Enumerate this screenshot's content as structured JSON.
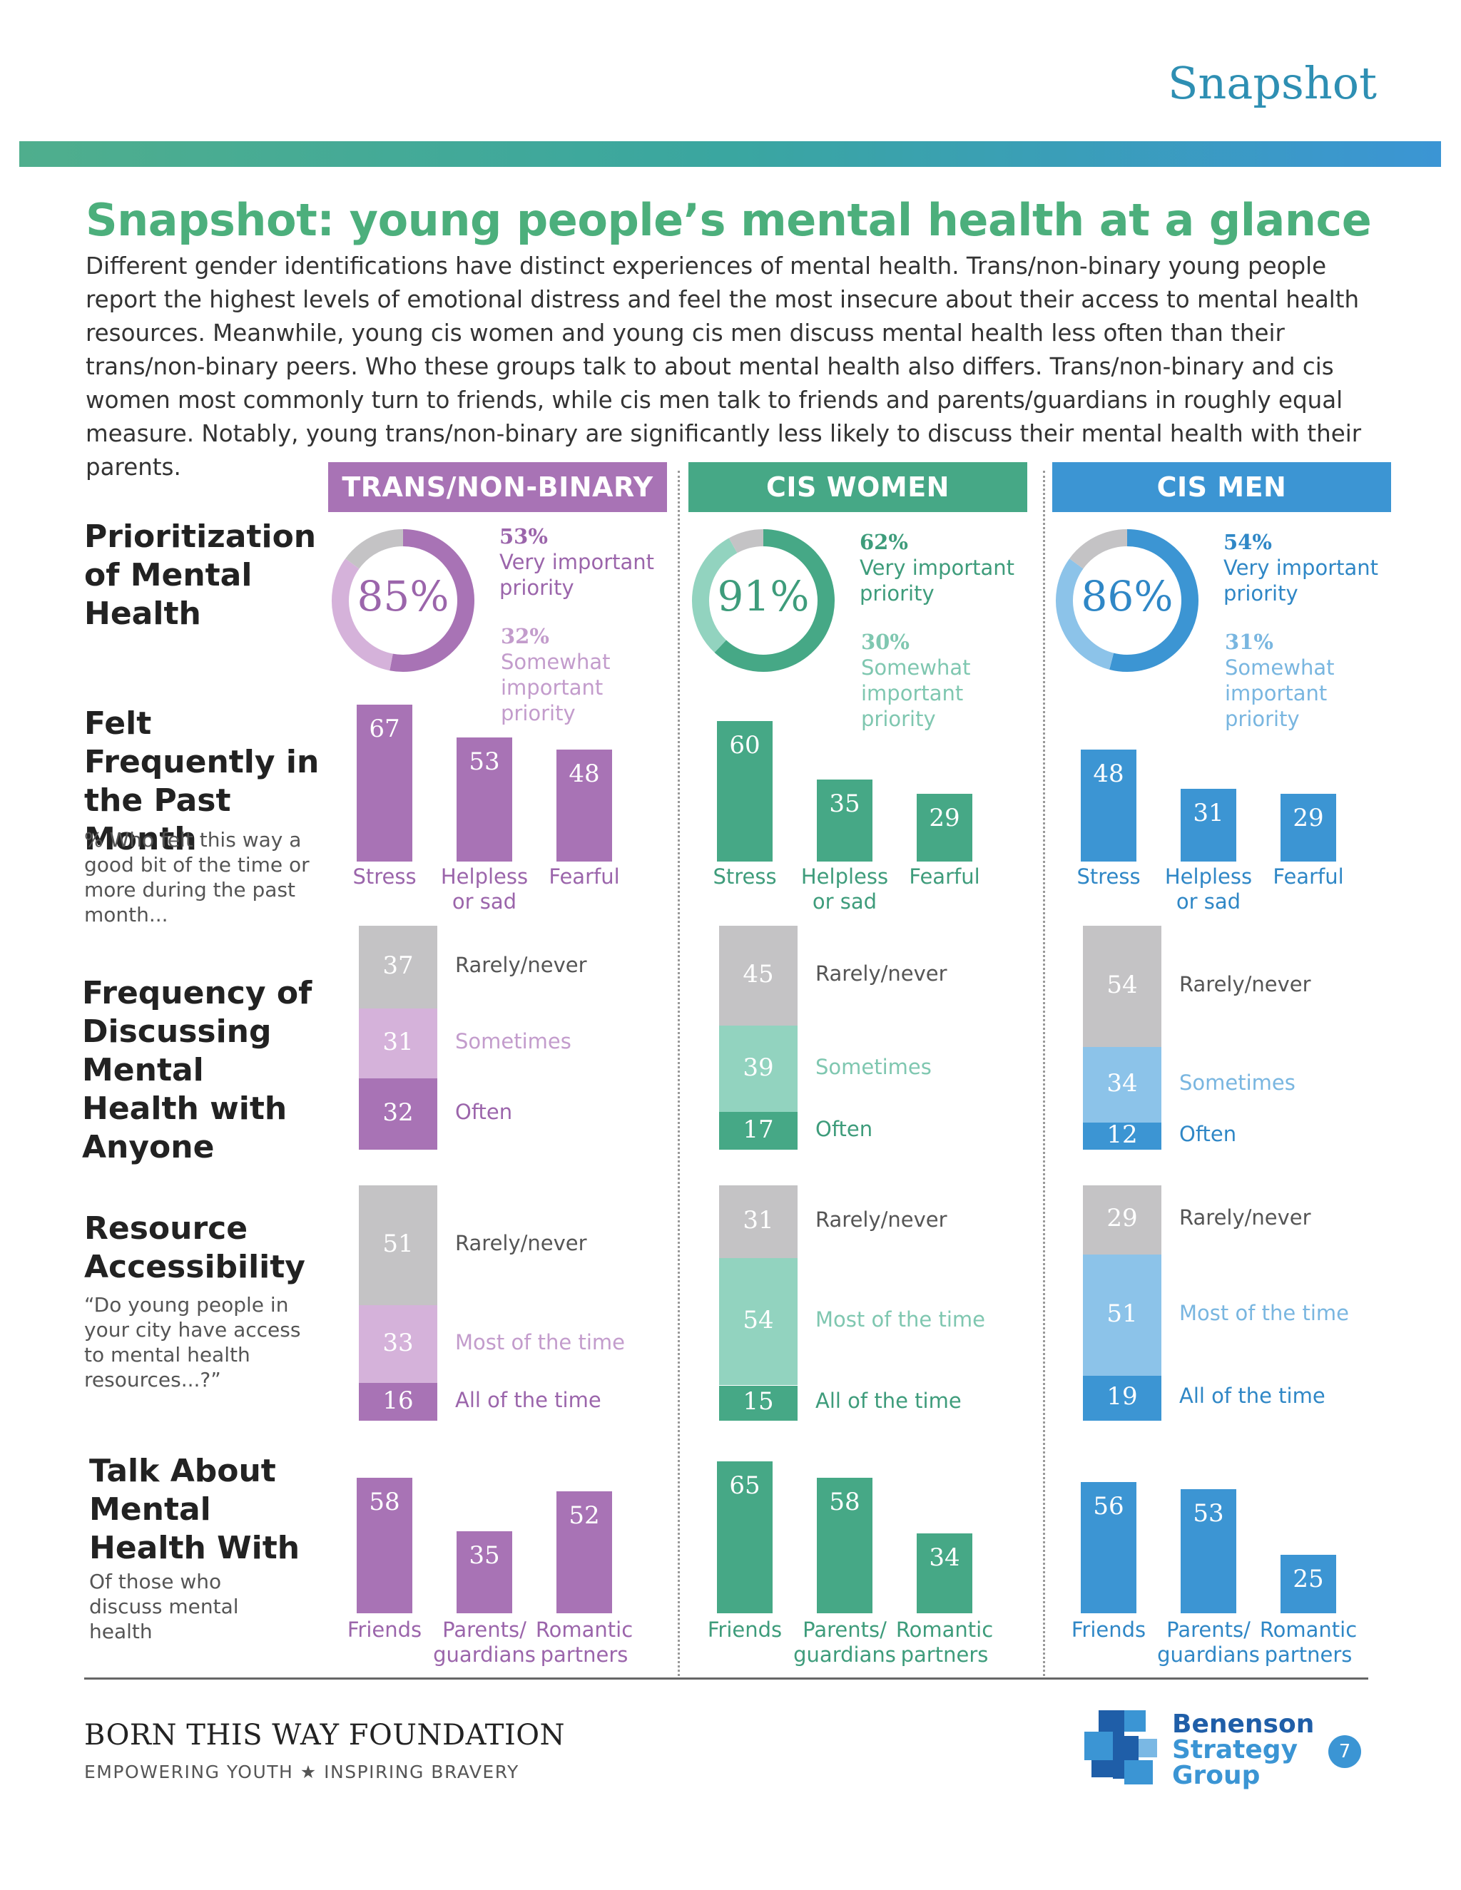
{
  "header": {
    "section_label": "Snapshot"
  },
  "title": "Snapshot: young people’s mental health at a glance",
  "intro": "Different gender identifications have distinct experiences of mental health. Trans/non-binary young people report the highest levels of emotional distress and feel the most insecure about their access to mental health resources. Meanwhile, young cis women and young cis men discuss mental health less often than their trans/non-binary peers. Who these groups talk to about mental health also differs. Trans/non-binary and cis women most commonly turn to friends, while cis men talk to friends and parents/guardians in roughly equal measure. Notably, young trans/non-binary are significantly less likely to discuss their mental health with their parents.",
  "rows": {
    "prioritization": {
      "title": "Prioritization of Mental Health"
    },
    "felt": {
      "title": "Felt Frequently in the Past Month",
      "sub": "% Who felt this way a good bit of the time or more during the past month..."
    },
    "frequency": {
      "title": "Frequency of Discussing Mental Health with Anyone"
    },
    "resource": {
      "title": "Resource Accessibility",
      "sub": "“Do young people in your city have access to mental health resources...?”"
    },
    "talk": {
      "title": "Talk About Mental Health With",
      "sub": "Of those who discuss mental health"
    }
  },
  "chart_data": {
    "type": "bar",
    "groups": [
      {
        "name": "TRANS/NON-BINARY",
        "colors": {
          "main": "#a873b5",
          "light": "#d5b2da",
          "text": "#9b65ab",
          "lighttext": "#c39ccc"
        },
        "priority": {
          "total": 85,
          "total_label": "85%",
          "very": 53,
          "very_label": "53%",
          "very_text": "Very important priority",
          "somewhat": 32,
          "somewhat_label": "32%",
          "somewhat_text": "Somewhat important priority"
        },
        "felt": {
          "categories": [
            "Stress",
            "Helpless or sad",
            "Fearful"
          ],
          "values": [
            67,
            53,
            48
          ]
        },
        "frequency": {
          "labels": [
            "Rarely/never",
            "Sometimes",
            "Often"
          ],
          "values": [
            37,
            31,
            32
          ]
        },
        "resource": {
          "labels": [
            "Rarely/never",
            "Most of the time",
            "All of the time"
          ],
          "values": [
            51,
            33,
            16
          ]
        },
        "talk": {
          "categories": [
            "Friends",
            "Parents/ guardians",
            "Romantic partners"
          ],
          "values": [
            58,
            35,
            52
          ]
        }
      },
      {
        "name": "CIS WOMEN",
        "colors": {
          "main": "#46a886",
          "light": "#92d3bf",
          "text": "#3e9c7b",
          "lighttext": "#7fc7b0"
        },
        "priority": {
          "total": 91,
          "total_label": "91%",
          "very": 62,
          "very_label": "62%",
          "very_text": "Very important priority",
          "somewhat": 30,
          "somewhat_label": "30%",
          "somewhat_text": "Somewhat important priority"
        },
        "felt": {
          "categories": [
            "Stress",
            "Helpless or sad",
            "Fearful"
          ],
          "values": [
            60,
            35,
            29
          ]
        },
        "frequency": {
          "labels": [
            "Rarely/never",
            "Sometimes",
            "Often"
          ],
          "values": [
            45,
            39,
            17
          ]
        },
        "resource": {
          "labels": [
            "Rarely/never",
            "Most of the time",
            "All of the time"
          ],
          "values": [
            31,
            54,
            15
          ]
        },
        "talk": {
          "categories": [
            "Friends",
            "Parents/ guardians",
            "Romantic partners"
          ],
          "values": [
            65,
            58,
            34
          ]
        }
      },
      {
        "name": "CIS MEN",
        "colors": {
          "main": "#3c95d3",
          "light": "#8cc3e9",
          "text": "#2f87c6",
          "lighttext": "#79b6e0"
        },
        "priority": {
          "total": 86,
          "total_label": "86%",
          "very": 54,
          "very_label": "54%",
          "very_text": "Very important priority",
          "somewhat": 31,
          "somewhat_label": "31%",
          "somewhat_text": "Somewhat important priority"
        },
        "felt": {
          "categories": [
            "Stress",
            "Helpless or sad",
            "Fearful"
          ],
          "values": [
            48,
            31,
            29
          ]
        },
        "frequency": {
          "labels": [
            "Rarely/never",
            "Sometimes",
            "Often"
          ],
          "values": [
            54,
            34,
            12
          ]
        },
        "resource": {
          "labels": [
            "Rarely/never",
            "Most of the time",
            "All of the time"
          ],
          "values": [
            29,
            51,
            19
          ]
        },
        "talk": {
          "categories": [
            "Friends",
            "Parents/ guardians",
            "Romantic partners"
          ],
          "values": [
            56,
            53,
            25
          ]
        }
      }
    ],
    "colors": {
      "rarely": "#c4c3c5",
      "rarely_text": "#555555"
    }
  },
  "footer": {
    "org": "BORN THIS WAY FOUNDATION",
    "tagline": "EMPOWERING YOUTH  ★  INSPIRING BRAVERY",
    "partner_logo_lines": [
      "Benenson",
      "Strategy",
      "Group"
    ],
    "page_number": "7"
  }
}
